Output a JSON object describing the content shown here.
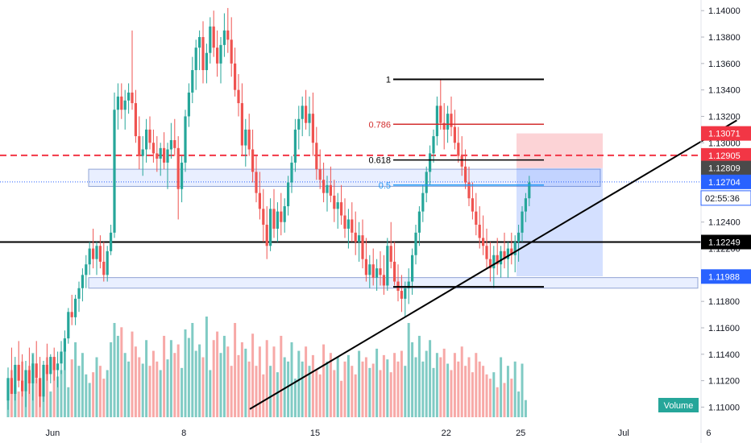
{
  "chart_data": {
    "type": "candlestick",
    "y_axis": {
      "range": [
        1.1096,
        1.1405
      ],
      "ticks": [
        "1.14000",
        "1.13800",
        "1.13600",
        "1.13400",
        "1.13200",
        "1.13000",
        "1.12800",
        "1.12600",
        "1.12400",
        "1.12200",
        "1.12000",
        "1.11800",
        "1.11600",
        "1.11400",
        "1.11200",
        "1.11000"
      ],
      "tick_values": [
        1.14,
        1.138,
        1.136,
        1.134,
        1.132,
        1.13,
        1.128,
        1.126,
        1.124,
        1.122,
        1.12,
        1.118,
        1.116,
        1.114,
        1.112,
        1.11
      ]
    },
    "x_axis": {
      "ticks": [
        "Jun",
        "8",
        "15",
        "22",
        "25",
        "Jul",
        "6"
      ],
      "tick_bar_index": [
        6,
        43,
        80,
        117,
        138,
        167,
        191
      ]
    },
    "price_labels": [
      {
        "value": 1.13071,
        "text": "1.13071",
        "color": "#f23645"
      },
      {
        "value": 1.12905,
        "text": "1.12905",
        "color": "#f23645"
      },
      {
        "value": 1.12809,
        "text": "1.12809",
        "color": "#4a4a4a"
      },
      {
        "value": 1.12704,
        "text": "1.12704",
        "color": "#2962ff"
      },
      {
        "value": 1.12249,
        "text": "1.12249",
        "color": "#000000"
      },
      {
        "value": 1.11988,
        "text": "1.11988",
        "color": "#2962ff"
      }
    ],
    "countdown": "02:55:36",
    "fibonacci": [
      {
        "label": "1",
        "value": 1.1348,
        "color": "#000000"
      },
      {
        "label": "0.786",
        "value": 1.1314,
        "color": "#d32f2f"
      },
      {
        "label": "0.618",
        "value": 1.1287,
        "color": "#000000"
      },
      {
        "label": "0.5",
        "value": 1.1268,
        "color": "#2196f3"
      }
    ],
    "fib_low": 1.1191,
    "horizontal_lines": [
      {
        "value": 1.12905,
        "style": "dashed",
        "color": "#f23645"
      },
      {
        "value": 1.12249,
        "style": "solid",
        "color": "#000000"
      },
      {
        "value": 1.12704,
        "style": "dotted",
        "color": "#2962ff"
      }
    ],
    "zones": [
      {
        "from": 1.1267,
        "to": 1.128
      },
      {
        "from": 1.119,
        "to": 1.1198
      }
    ],
    "position": {
      "entry": 1.12809,
      "stop": 1.13071,
      "target": 1.1199
    },
    "trendline": [
      [
        75,
        1.10985
      ],
      [
        176,
        1.1317
      ]
    ],
    "volume_label": "Volume",
    "colors": {
      "up": "#26a69a",
      "down": "#ef5350",
      "up_vol": "#80cbc4",
      "down_vol": "#f7a9a7"
    },
    "candles_ohlc": [
      [
        1.1105,
        1.113,
        1.1098,
        1.1122
      ],
      [
        1.1122,
        1.1145,
        1.111,
        1.111
      ],
      [
        1.111,
        1.1138,
        1.1105,
        1.1132
      ],
      [
        1.1132,
        1.115,
        1.1115,
        1.112
      ],
      [
        1.112,
        1.114,
        1.1108,
        1.1112
      ],
      [
        1.1112,
        1.1135,
        1.11,
        1.1128
      ],
      [
        1.1128,
        1.1145,
        1.111,
        1.1118
      ],
      [
        1.1118,
        1.114,
        1.1105,
        1.1133
      ],
      [
        1.1133,
        1.115,
        1.1118,
        1.1122
      ],
      [
        1.1122,
        1.1138,
        1.11,
        1.1108
      ],
      [
        1.1108,
        1.1135,
        1.1104,
        1.1132
      ],
      [
        1.1132,
        1.1148,
        1.112,
        1.1125
      ],
      [
        1.1125,
        1.114,
        1.1118,
        1.1138
      ],
      [
        1.1138,
        1.1145,
        1.112,
        1.1128
      ],
      [
        1.1128,
        1.1142,
        1.1115,
        1.1133
      ],
      [
        1.1133,
        1.115,
        1.1125,
        1.1142
      ],
      [
        1.1142,
        1.1158,
        1.1128,
        1.1152
      ],
      [
        1.1152,
        1.1175,
        1.1148,
        1.1172
      ],
      [
        1.1172,
        1.1185,
        1.1162,
        1.1168
      ],
      [
        1.1168,
        1.1185,
        1.1162,
        1.1182
      ],
      [
        1.1182,
        1.1195,
        1.1172,
        1.119
      ],
      [
        1.119,
        1.1205,
        1.118,
        1.12
      ],
      [
        1.12,
        1.1215,
        1.119,
        1.1208
      ],
      [
        1.1208,
        1.1225,
        1.12,
        1.122
      ],
      [
        1.122,
        1.1235,
        1.1205,
        1.1212
      ],
      [
        1.1212,
        1.1225,
        1.12,
        1.1222
      ],
      [
        1.1222,
        1.123,
        1.1205,
        1.121
      ],
      [
        1.121,
        1.1225,
        1.1195,
        1.12
      ],
      [
        1.12,
        1.1222,
        1.1195,
        1.1218
      ],
      [
        1.1218,
        1.1238,
        1.1215,
        1.1232
      ],
      [
        1.1232,
        1.1338,
        1.1228,
        1.1325
      ],
      [
        1.1325,
        1.1345,
        1.131,
        1.1335
      ],
      [
        1.1335,
        1.1345,
        1.1318,
        1.1325
      ],
      [
        1.1325,
        1.134,
        1.131,
        1.1332
      ],
      [
        1.1332,
        1.1345,
        1.1322,
        1.1338
      ],
      [
        1.1338,
        1.1385,
        1.1325,
        1.133
      ],
      [
        1.133,
        1.134,
        1.13,
        1.1305
      ],
      [
        1.1305,
        1.132,
        1.128,
        1.129
      ],
      [
        1.129,
        1.1305,
        1.1275,
        1.1295
      ],
      [
        1.1295,
        1.1318,
        1.1285,
        1.131
      ],
      [
        1.131,
        1.132,
        1.1295,
        1.13
      ],
      [
        1.13,
        1.131,
        1.1285,
        1.1292
      ],
      [
        1.1292,
        1.1305,
        1.1278,
        1.1288
      ],
      [
        1.1288,
        1.13,
        1.1275,
        1.1296
      ],
      [
        1.1296,
        1.1308,
        1.128,
        1.1285
      ],
      [
        1.1285,
        1.13,
        1.1265,
        1.1295
      ],
      [
        1.1295,
        1.1315,
        1.1288,
        1.1302
      ],
      [
        1.1302,
        1.1318,
        1.129,
        1.1296
      ],
      [
        1.1296,
        1.1305,
        1.1242,
        1.1265
      ],
      [
        1.1265,
        1.129,
        1.1255,
        1.1285
      ],
      [
        1.1285,
        1.1325,
        1.1278,
        1.132
      ],
      [
        1.132,
        1.1345,
        1.1312,
        1.1338
      ],
      [
        1.1338,
        1.1365,
        1.133,
        1.1355
      ],
      [
        1.1355,
        1.1378,
        1.134,
        1.1372
      ],
      [
        1.1372,
        1.1385,
        1.1355,
        1.138
      ],
      [
        1.138,
        1.1392,
        1.1345,
        1.1355
      ],
      [
        1.1355,
        1.1375,
        1.1345,
        1.1368
      ],
      [
        1.1368,
        1.1395,
        1.136,
        1.1388
      ],
      [
        1.1388,
        1.14,
        1.1365,
        1.1372
      ],
      [
        1.1372,
        1.1385,
        1.135,
        1.136
      ],
      [
        1.136,
        1.138,
        1.1345,
        1.1374
      ],
      [
        1.1374,
        1.1398,
        1.1365,
        1.1385
      ],
      [
        1.1385,
        1.1402,
        1.1368,
        1.1378
      ],
      [
        1.1378,
        1.1395,
        1.135,
        1.136
      ],
      [
        1.136,
        1.1372,
        1.1335,
        1.134
      ],
      [
        1.134,
        1.1352,
        1.132,
        1.133
      ],
      [
        1.133,
        1.1345,
        1.129,
        1.1298
      ],
      [
        1.1298,
        1.1318,
        1.1282,
        1.131
      ],
      [
        1.131,
        1.1322,
        1.129,
        1.1295
      ],
      [
        1.1295,
        1.131,
        1.127,
        1.1278
      ],
      [
        1.1278,
        1.129,
        1.1255,
        1.1262
      ],
      [
        1.1262,
        1.1278,
        1.1242,
        1.125
      ],
      [
        1.125,
        1.1265,
        1.1225,
        1.1238
      ],
      [
        1.1238,
        1.1252,
        1.1212,
        1.1222
      ],
      [
        1.1222,
        1.1258,
        1.1218,
        1.125
      ],
      [
        1.125,
        1.1265,
        1.1228,
        1.1235
      ],
      [
        1.1235,
        1.1255,
        1.1225,
        1.1248
      ],
      [
        1.1248,
        1.1262,
        1.123,
        1.124
      ],
      [
        1.124,
        1.1258,
        1.1232,
        1.1252
      ],
      [
        1.1252,
        1.1275,
        1.1245,
        1.127
      ],
      [
        1.127,
        1.129,
        1.1262,
        1.1285
      ],
      [
        1.1285,
        1.1318,
        1.1278,
        1.131
      ],
      [
        1.131,
        1.1328,
        1.1295,
        1.1318
      ],
      [
        1.1318,
        1.1335,
        1.1305,
        1.1328
      ],
      [
        1.1328,
        1.134,
        1.131,
        1.1315
      ],
      [
        1.1315,
        1.1335,
        1.1305,
        1.1322
      ],
      [
        1.1322,
        1.1338,
        1.129,
        1.13
      ],
      [
        1.13,
        1.1312,
        1.1272,
        1.128
      ],
      [
        1.128,
        1.1295,
        1.1265,
        1.1272
      ],
      [
        1.1272,
        1.1285,
        1.1255,
        1.1262
      ],
      [
        1.1262,
        1.1275,
        1.1248,
        1.1268
      ],
      [
        1.1268,
        1.1282,
        1.1255,
        1.126
      ],
      [
        1.126,
        1.1272,
        1.124,
        1.125
      ],
      [
        1.125,
        1.1262,
        1.1235,
        1.1255
      ],
      [
        1.1255,
        1.1268,
        1.1238,
        1.1245
      ],
      [
        1.1245,
        1.1258,
        1.1228,
        1.1235
      ],
      [
        1.1235,
        1.125,
        1.122,
        1.1242
      ],
      [
        1.1242,
        1.1255,
        1.1225,
        1.1232
      ],
      [
        1.1232,
        1.1248,
        1.1215,
        1.1225
      ],
      [
        1.1225,
        1.124,
        1.121,
        1.123
      ],
      [
        1.123,
        1.1242,
        1.1205,
        1.1212
      ],
      [
        1.1212,
        1.1228,
        1.1195,
        1.12
      ],
      [
        1.12,
        1.1215,
        1.119,
        1.1208
      ],
      [
        1.1208,
        1.122,
        1.1192,
        1.1198
      ],
      [
        1.1198,
        1.1212,
        1.1188,
        1.1205
      ],
      [
        1.1205,
        1.1218,
        1.1192,
        1.12
      ],
      [
        1.12,
        1.1215,
        1.1185,
        1.1192
      ],
      [
        1.1192,
        1.1228,
        1.1188,
        1.1222
      ],
      [
        1.1222,
        1.124,
        1.1205,
        1.121
      ],
      [
        1.121,
        1.1225,
        1.1192,
        1.1195
      ],
      [
        1.1195,
        1.1208,
        1.118,
        1.1188
      ],
      [
        1.1188,
        1.12,
        1.1172,
        1.1182
      ],
      [
        1.1182,
        1.1195,
        1.1168,
        1.119
      ],
      [
        1.119,
        1.1205,
        1.1178,
        1.1195
      ],
      [
        1.1195,
        1.122,
        1.1185,
        1.1215
      ],
      [
        1.1215,
        1.1238,
        1.1208,
        1.1232
      ],
      [
        1.1232,
        1.1252,
        1.1222,
        1.1248
      ],
      [
        1.1248,
        1.1268,
        1.124,
        1.1262
      ],
      [
        1.1262,
        1.1282,
        1.1255,
        1.1278
      ],
      [
        1.1278,
        1.1298,
        1.1268,
        1.1292
      ],
      [
        1.1292,
        1.131,
        1.1285,
        1.1305
      ],
      [
        1.1305,
        1.1335,
        1.1298,
        1.1328
      ],
      [
        1.1328,
        1.1348,
        1.131,
        1.1315
      ],
      [
        1.1315,
        1.133,
        1.1295,
        1.131
      ],
      [
        1.131,
        1.1328,
        1.13,
        1.1322
      ],
      [
        1.1322,
        1.1335,
        1.1305,
        1.1312
      ],
      [
        1.1312,
        1.1325,
        1.1295,
        1.13
      ],
      [
        1.13,
        1.1312,
        1.1285,
        1.129
      ],
      [
        1.129,
        1.1305,
        1.1275,
        1.1282
      ],
      [
        1.1282,
        1.1295,
        1.1265,
        1.127
      ],
      [
        1.127,
        1.1282,
        1.1252,
        1.1258
      ],
      [
        1.1258,
        1.127,
        1.1242,
        1.1248
      ],
      [
        1.1248,
        1.1262,
        1.123,
        1.1238
      ],
      [
        1.1238,
        1.1252,
        1.122,
        1.1228
      ],
      [
        1.1228,
        1.1245,
        1.1215,
        1.1222
      ],
      [
        1.1222,
        1.1235,
        1.1205,
        1.1212
      ],
      [
        1.1212,
        1.1225,
        1.1195,
        1.1205
      ],
      [
        1.1205,
        1.1222,
        1.119,
        1.1215
      ],
      [
        1.1215,
        1.1228,
        1.12,
        1.1208
      ],
      [
        1.1208,
        1.1222,
        1.1198,
        1.1218
      ],
      [
        1.1218,
        1.1232,
        1.1205,
        1.1212
      ],
      [
        1.1212,
        1.1225,
        1.1198,
        1.122
      ],
      [
        1.122,
        1.1232,
        1.1208,
        1.1215
      ],
      [
        1.1215,
        1.123,
        1.1202,
        1.1225
      ],
      [
        1.1225,
        1.1238,
        1.121,
        1.1232
      ],
      [
        1.1232,
        1.1252,
        1.1225,
        1.1248
      ],
      [
        1.1248,
        1.1262,
        1.124,
        1.1258
      ],
      [
        1.1258,
        1.1275,
        1.1252,
        1.127
      ]
    ],
    "volumes": [
      18,
      22,
      15,
      12,
      26,
      20,
      24,
      30,
      18,
      16,
      22,
      28,
      12,
      25,
      19,
      22,
      32,
      14,
      27,
      35,
      24,
      30,
      20,
      16,
      21,
      28,
      24,
      18,
      22,
      35,
      44,
      38,
      42,
      30,
      26,
      40,
      33,
      28,
      25,
      36,
      24,
      31,
      26,
      22,
      38,
      27,
      36,
      30,
      34,
      23,
      41,
      37,
      44,
      31,
      34,
      28,
      47,
      22,
      36,
      40,
      30,
      38,
      33,
      24,
      44,
      29,
      35,
      32,
      26,
      39,
      24,
      33,
      20,
      36,
      24,
      33,
      21,
      38,
      28,
      26,
      35,
      18,
      31,
      26,
      33,
      24,
      29,
      22,
      20,
      34,
      26,
      30,
      22,
      28,
      17,
      26,
      29,
      24,
      20,
      31,
      26,
      28,
      23,
      25,
      32,
      22,
      29,
      27,
      21,
      30,
      26,
      31,
      24,
      44,
      35,
      28,
      38,
      26,
      31,
      36,
      23,
      30,
      28,
      32,
      25,
      22,
      30,
      26,
      33,
      24,
      28,
      21,
      30,
      26,
      24,
      20,
      18,
      21,
      14,
      28,
      16,
      24,
      18,
      26,
      12,
      25,
      8
    ]
  }
}
